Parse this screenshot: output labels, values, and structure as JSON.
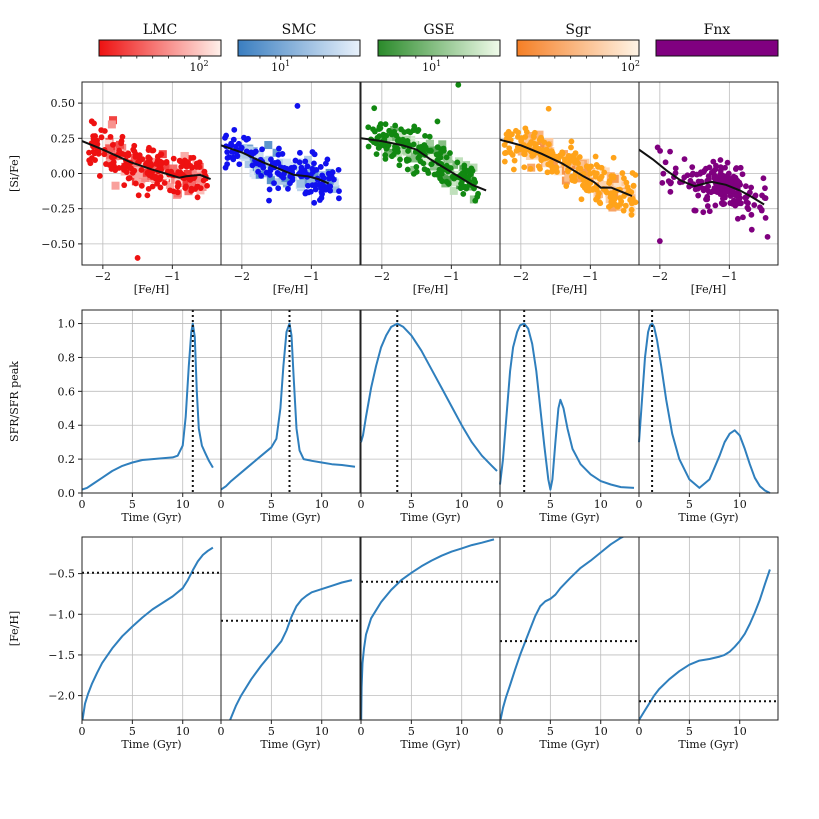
{
  "chart_data": {
    "type": "multi-panel",
    "galaxies": [
      {
        "name": "LMC",
        "color": "#ee1111",
        "colorbar": {
          "cmap_start": "#ee1111",
          "cmap_end": "#fff0ea",
          "tick_label": "10",
          "tick_exp": "2",
          "tick_frac": 0.82
        }
      },
      {
        "name": "SMC",
        "color": "#1010ee",
        "colorbar": {
          "cmap_start": "#3a7ec0",
          "cmap_end": "#e8f1fb",
          "tick_label": "10",
          "tick_exp": "1",
          "tick_frac": 0.35
        }
      },
      {
        "name": "GSE",
        "color": "#118811",
        "colorbar": {
          "cmap_start": "#2a8a2a",
          "cmap_end": "#f0fbea",
          "tick_label": "10",
          "tick_exp": "1",
          "tick_frac": 0.44
        }
      },
      {
        "name": "Sgr",
        "color": "#ffa31a",
        "colorbar": {
          "cmap_start": "#f57f25",
          "cmap_end": "#fff4e6",
          "tick_label": "10",
          "tick_exp": "2",
          "tick_frac": 0.93
        }
      },
      {
        "name": "Fnx",
        "color": "#7f007f",
        "colorbar": {
          "cmap_start": "#800080",
          "cmap_end": "#800080",
          "tick_label": "",
          "tick_exp": "",
          "tick_frac": 0
        }
      }
    ],
    "row1": {
      "xlabel": "[Fe/H]",
      "ylabel": "[Si/Fe]",
      "xlim": [
        -2.3,
        -0.3
      ],
      "ylim": [
        -0.65,
        0.65
      ],
      "xticks": [
        -2,
        -1
      ],
      "yticks": [
        0.5,
        0.25,
        0.0,
        -0.25,
        -0.5
      ],
      "xtick_labels": [
        "−2",
        "−1"
      ],
      "ytick_labels": [
        "0.50",
        "0.25",
        "0.00",
        "−0.25",
        "−0.50"
      ],
      "model_tracks": [
        {
          "x": [
            -2.3,
            -2.0,
            -1.6,
            -1.3,
            -1.1,
            -0.9,
            -0.8,
            -0.6,
            -0.45
          ],
          "y": [
            0.23,
            0.17,
            0.08,
            0.03,
            0.0,
            -0.03,
            -0.02,
            -0.01,
            -0.04
          ]
        },
        {
          "x": [
            -2.3,
            -2.0,
            -1.7,
            -1.45,
            -1.25,
            -1.05,
            -0.9,
            -0.75
          ],
          "y": [
            0.2,
            0.15,
            0.08,
            0.03,
            -0.01,
            -0.02,
            -0.04,
            -0.07
          ]
        },
        {
          "x": [
            -2.3,
            -2.0,
            -1.7,
            -1.5,
            -1.3,
            -1.1,
            -0.9,
            -0.7,
            -0.5
          ],
          "y": [
            0.25,
            0.23,
            0.2,
            0.17,
            0.1,
            0.04,
            -0.02,
            -0.08,
            -0.12
          ]
        },
        {
          "x": [
            -2.3,
            -2.0,
            -1.7,
            -1.4,
            -1.1,
            -0.95,
            -0.85,
            -0.7,
            -0.5,
            -0.4
          ],
          "y": [
            0.24,
            0.2,
            0.14,
            0.07,
            -0.02,
            -0.06,
            -0.1,
            -0.1,
            -0.14,
            -0.16
          ]
        },
        {
          "x": [
            -2.3,
            -2.1,
            -1.9,
            -1.7,
            -1.5,
            -1.35,
            -1.25,
            -1.05,
            -0.85,
            -0.7,
            -0.5
          ],
          "y": [
            0.17,
            0.1,
            0.02,
            -0.05,
            -0.09,
            -0.07,
            -0.06,
            -0.08,
            -0.12,
            -0.16,
            -0.22
          ]
        }
      ]
    },
    "row2": {
      "xlabel": "Time (Gyr)",
      "ylabel": "SFR/SFR peak",
      "xlim": [
        0,
        13.8
      ],
      "ylim": [
        0.0,
        1.08
      ],
      "xticks": [
        0,
        5,
        10
      ],
      "yticks": [
        0.0,
        0.2,
        0.4,
        0.6,
        0.8,
        1.0
      ],
      "xtick_labels": [
        "0",
        "5",
        "10"
      ],
      "ytick_labels": [
        "0.0",
        "0.2",
        "0.4",
        "0.6",
        "0.8",
        "1.0"
      ],
      "peak_times": [
        11.0,
        6.8,
        3.6,
        2.4,
        1.3
      ],
      "curves": [
        {
          "t": [
            0,
            0.5,
            1,
            2,
            3,
            4,
            5,
            6,
            7,
            8,
            9,
            9.5,
            10,
            10.3,
            10.6,
            10.85,
            11.0,
            11.2,
            11.4,
            11.6,
            11.9,
            12.2,
            12.6,
            13.0
          ],
          "sfr": [
            0.02,
            0.03,
            0.05,
            0.09,
            0.13,
            0.16,
            0.18,
            0.195,
            0.2,
            0.205,
            0.21,
            0.22,
            0.28,
            0.45,
            0.75,
            0.95,
            1.0,
            0.92,
            0.6,
            0.38,
            0.28,
            0.24,
            0.19,
            0.15
          ]
        },
        {
          "t": [
            0,
            0.5,
            1,
            2,
            3,
            4,
            5,
            5.5,
            5.9,
            6.2,
            6.5,
            6.8,
            7.0,
            7.2,
            7.5,
            7.8,
            8.2,
            9,
            10,
            11,
            12,
            13.3
          ],
          "sfr": [
            0.02,
            0.04,
            0.07,
            0.12,
            0.17,
            0.22,
            0.27,
            0.32,
            0.5,
            0.75,
            0.95,
            1.0,
            0.93,
            0.7,
            0.38,
            0.25,
            0.2,
            0.19,
            0.18,
            0.17,
            0.165,
            0.155
          ]
        },
        {
          "t": [
            0,
            0.2,
            0.5,
            1,
            1.5,
            2,
            2.5,
            3,
            3.6,
            4.2,
            5,
            6,
            7,
            8,
            9,
            10,
            11,
            12,
            13,
            13.5
          ],
          "sfr": [
            0.3,
            0.34,
            0.45,
            0.62,
            0.75,
            0.86,
            0.93,
            0.98,
            1.0,
            0.98,
            0.93,
            0.84,
            0.73,
            0.62,
            0.51,
            0.4,
            0.3,
            0.22,
            0.16,
            0.13
          ]
        },
        {
          "t": [
            0,
            0.3,
            0.7,
            1.0,
            1.3,
            1.7,
            2.0,
            2.4,
            2.8,
            3.2,
            3.6,
            4.0,
            4.4,
            4.8,
            5.0,
            5.2,
            5.5,
            5.8,
            6.0,
            6.3,
            6.7,
            7.2,
            8,
            9,
            10,
            11,
            12,
            13.3
          ],
          "sfr": [
            0.05,
            0.2,
            0.5,
            0.72,
            0.86,
            0.95,
            0.99,
            1.0,
            0.97,
            0.88,
            0.72,
            0.5,
            0.28,
            0.08,
            0.02,
            0.08,
            0.3,
            0.5,
            0.55,
            0.5,
            0.38,
            0.26,
            0.17,
            0.11,
            0.07,
            0.05,
            0.035,
            0.03
          ]
        },
        {
          "t": [
            0,
            0.3,
            0.6,
            0.9,
            1.1,
            1.3,
            1.5,
            1.8,
            2.2,
            2.7,
            3.3,
            4,
            5,
            6,
            7,
            8,
            8.5,
            9,
            9.5,
            10,
            10.5,
            11,
            11.5,
            12,
            12.5,
            13.0
          ],
          "sfr": [
            0.3,
            0.55,
            0.8,
            0.95,
            0.99,
            1.0,
            0.98,
            0.9,
            0.75,
            0.55,
            0.35,
            0.2,
            0.08,
            0.03,
            0.08,
            0.22,
            0.3,
            0.35,
            0.37,
            0.34,
            0.26,
            0.17,
            0.09,
            0.04,
            0.015,
            0.0
          ]
        }
      ]
    },
    "row3": {
      "xlabel": "Time (Gyr)",
      "ylabel": "[Fe/H]",
      "xlim": [
        0,
        13.8
      ],
      "ylim": [
        -2.3,
        -0.05
      ],
      "xticks": [
        0,
        5,
        10
      ],
      "yticks": [
        -0.5,
        -1.0,
        -1.5,
        -2.0
      ],
      "xtick_labels": [
        "0",
        "5",
        "10"
      ],
      "ytick_labels": [
        "−0.5",
        "−1.0",
        "−1.5",
        "−2.0"
      ],
      "mean_feh": [
        -0.49,
        -1.08,
        -0.6,
        -1.33,
        -2.07
      ],
      "curves": [
        {
          "t": [
            0.05,
            0.3,
            0.6,
            1,
            1.5,
            2,
            3,
            4,
            5,
            6,
            7,
            8,
            9,
            10,
            10.5,
            11,
            11.5,
            12,
            12.5,
            13.0
          ],
          "feh": [
            -2.3,
            -2.1,
            -1.98,
            -1.85,
            -1.72,
            -1.6,
            -1.42,
            -1.27,
            -1.15,
            -1.04,
            -0.94,
            -0.86,
            -0.78,
            -0.68,
            -0.58,
            -0.46,
            -0.35,
            -0.27,
            -0.22,
            -0.18
          ]
        },
        {
          "t": [
            0.9,
            1.5,
            2,
            3,
            4,
            5,
            6,
            6.5,
            7,
            7.5,
            8,
            8.5,
            9,
            10,
            11,
            12,
            13.0
          ],
          "feh": [
            -2.3,
            -2.12,
            -2.0,
            -1.8,
            -1.63,
            -1.48,
            -1.33,
            -1.2,
            -1.03,
            -0.9,
            -0.82,
            -0.77,
            -0.73,
            -0.69,
            -0.65,
            -0.61,
            -0.58
          ]
        },
        {
          "t": [
            0.02,
            0.06,
            0.15,
            0.3,
            0.5,
            1,
            2,
            3,
            4,
            5,
            6,
            7,
            8,
            9,
            10,
            11,
            12,
            13.2
          ],
          "feh": [
            -2.3,
            -1.9,
            -1.6,
            -1.42,
            -1.25,
            -1.05,
            -0.85,
            -0.7,
            -0.58,
            -0.49,
            -0.41,
            -0.34,
            -0.28,
            -0.23,
            -0.19,
            -0.15,
            -0.12,
            -0.08
          ]
        },
        {
          "t": [
            0.05,
            0.3,
            0.6,
            1,
            1.5,
            2,
            3,
            3.5,
            4,
            4.5,
            5,
            5.5,
            6,
            7,
            8,
            9,
            10,
            11,
            12,
            13.0
          ],
          "feh": [
            -2.3,
            -2.15,
            -2.02,
            -1.87,
            -1.68,
            -1.5,
            -1.18,
            -1.02,
            -0.9,
            -0.84,
            -0.81,
            -0.76,
            -0.68,
            -0.55,
            -0.43,
            -0.34,
            -0.24,
            -0.14,
            -0.06,
            0.0
          ]
        },
        {
          "t": [
            0,
            0.5,
            1,
            1.5,
            2,
            3,
            4,
            5,
            6,
            7,
            8,
            8.5,
            9,
            9.5,
            10,
            10.5,
            11,
            11.5,
            12,
            12.5,
            13.0
          ],
          "feh": [
            -2.3,
            -2.2,
            -2.1,
            -2.0,
            -1.92,
            -1.8,
            -1.7,
            -1.62,
            -1.57,
            -1.55,
            -1.52,
            -1.5,
            -1.46,
            -1.4,
            -1.33,
            -1.24,
            -1.12,
            -0.98,
            -0.82,
            -0.63,
            -0.45
          ]
        }
      ]
    }
  }
}
